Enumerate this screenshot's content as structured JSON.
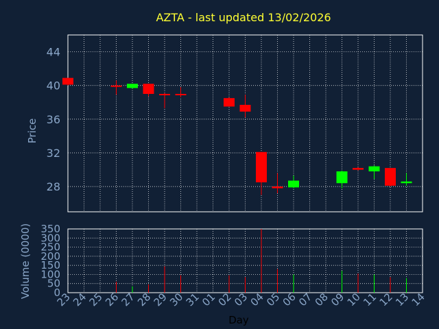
{
  "chart_data": {
    "type": "candlestick",
    "title": "AZTA - last updated 13/02/2026",
    "xlabel": "Day",
    "colors": {
      "background": "#112035",
      "plot_border": "#ffffff",
      "grid": "#ffffff",
      "title": "#ffff33",
      "tick_text": "#8aa6c8",
      "xlabel_text": "#000000",
      "up": "#00ff00",
      "down": "#ff0000"
    },
    "x_ticks": [
      "23",
      "24",
      "25",
      "26",
      "27",
      "28",
      "29",
      "30",
      "31",
      "01",
      "02",
      "03",
      "04",
      "05",
      "06",
      "07",
      "08",
      "09",
      "10",
      "11",
      "12",
      "13",
      "14"
    ],
    "price_panel": {
      "ylabel": "Price",
      "ylim": [
        25,
        46
      ],
      "yticks": [
        "28",
        "32",
        "36",
        "40",
        "44"
      ],
      "grid": true
    },
    "volume_panel": {
      "ylabel": "Volume (0000)",
      "ylim": [
        0,
        350
      ],
      "yticks": [
        "0",
        "50",
        "100",
        "150",
        "200",
        "250",
        "300",
        "350"
      ],
      "grid": true
    },
    "candles": [
      {
        "day": "23",
        "open": 40.9,
        "high": 40.9,
        "low": 40.0,
        "close": 40.1,
        "volume": 0
      },
      {
        "day": "26",
        "open": 40.0,
        "high": 40.6,
        "low": 38.9,
        "close": 39.9,
        "volume": 60
      },
      {
        "day": "27",
        "open": 39.7,
        "high": 40.2,
        "low": 39.6,
        "close": 40.2,
        "volume": 35
      },
      {
        "day": "28",
        "open": 40.2,
        "high": 40.2,
        "low": 38.7,
        "close": 39.0,
        "volume": 45
      },
      {
        "day": "29",
        "open": 39.0,
        "high": 39.1,
        "low": 37.3,
        "close": 38.9,
        "volume": 145
      },
      {
        "day": "30",
        "open": 39.0,
        "high": 39.8,
        "low": 38.6,
        "close": 38.9,
        "volume": 95
      },
      {
        "day": "02",
        "open": 38.5,
        "high": 38.6,
        "low": 37.5,
        "close": 37.5,
        "volume": 95
      },
      {
        "day": "03",
        "open": 37.7,
        "high": 38.9,
        "low": 36.2,
        "close": 36.9,
        "volume": 85
      },
      {
        "day": "04",
        "open": 32.1,
        "high": 32.1,
        "low": 27.0,
        "close": 28.5,
        "volume": 350
      },
      {
        "day": "05",
        "open": 28.0,
        "high": 29.6,
        "low": 27.2,
        "close": 27.8,
        "volume": 130
      },
      {
        "day": "06",
        "open": 27.9,
        "high": 29.3,
        "low": 27.8,
        "close": 28.7,
        "volume": 100
      },
      {
        "day": "09",
        "open": 28.4,
        "high": 29.9,
        "low": 27.8,
        "close": 29.8,
        "volume": 120
      },
      {
        "day": "10",
        "open": 30.2,
        "high": 30.3,
        "low": 29.9,
        "close": 30.0,
        "volume": 105
      },
      {
        "day": "11",
        "open": 29.8,
        "high": 30.5,
        "low": 28.9,
        "close": 30.4,
        "volume": 100
      },
      {
        "day": "12",
        "open": 30.2,
        "high": 30.2,
        "low": 28.0,
        "close": 28.1,
        "volume": 85
      },
      {
        "day": "13",
        "open": 28.4,
        "high": 29.6,
        "low": 28.1,
        "close": 28.6,
        "volume": 80
      }
    ]
  }
}
